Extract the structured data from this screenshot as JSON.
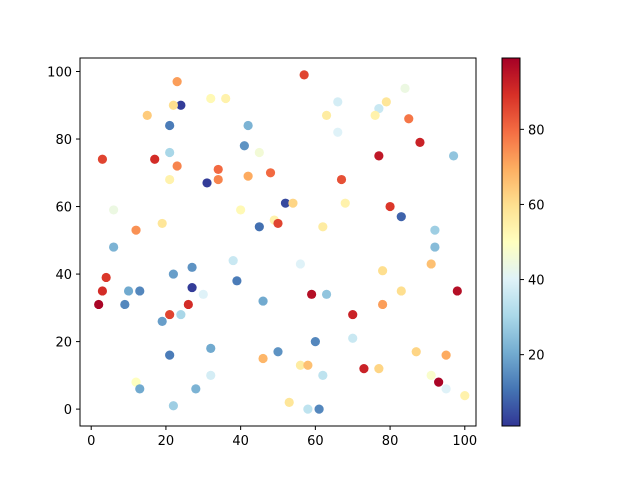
{
  "chart_data": {
    "type": "scatter",
    "title": "",
    "xlabel": "",
    "ylabel": "",
    "xlim": [
      -3,
      103
    ],
    "ylim": [
      -5,
      104
    ],
    "x_ticks": [
      0,
      20,
      40,
      60,
      80,
      100
    ],
    "y_ticks": [
      0,
      20,
      40,
      60,
      80,
      100
    ],
    "grid": false,
    "colormap": "RdYlBu_r",
    "color_range": [
      1,
      99
    ],
    "colorbar": {
      "ticks": [
        20,
        40,
        60,
        80
      ],
      "placement": "right"
    },
    "points": [
      {
        "x": 23,
        "y": 97,
        "c": 72
      },
      {
        "x": 57,
        "y": 99,
        "c": 86
      },
      {
        "x": 24,
        "y": 90,
        "c": 2
      },
      {
        "x": 22,
        "y": 90,
        "c": 60
      },
      {
        "x": 32,
        "y": 92,
        "c": 52
      },
      {
        "x": 36,
        "y": 92,
        "c": 54
      },
      {
        "x": 66,
        "y": 91,
        "c": 38
      },
      {
        "x": 77,
        "y": 89,
        "c": 36
      },
      {
        "x": 79,
        "y": 91,
        "c": 58
      },
      {
        "x": 84,
        "y": 95,
        "c": 44
      },
      {
        "x": 15,
        "y": 87,
        "c": 64
      },
      {
        "x": 63,
        "y": 87,
        "c": 56
      },
      {
        "x": 76,
        "y": 87,
        "c": 54
      },
      {
        "x": 85,
        "y": 86,
        "c": 78
      },
      {
        "x": 21,
        "y": 84,
        "c": 12
      },
      {
        "x": 42,
        "y": 84,
        "c": 22
      },
      {
        "x": 66,
        "y": 82,
        "c": 40
      },
      {
        "x": 88,
        "y": 79,
        "c": 92
      },
      {
        "x": 41,
        "y": 78,
        "c": 16
      },
      {
        "x": 21,
        "y": 76,
        "c": 30
      },
      {
        "x": 45,
        "y": 76,
        "c": 46
      },
      {
        "x": 97,
        "y": 75,
        "c": 26
      },
      {
        "x": 3,
        "y": 74,
        "c": 86
      },
      {
        "x": 17,
        "y": 74,
        "c": 90
      },
      {
        "x": 77,
        "y": 75,
        "c": 94
      },
      {
        "x": 23,
        "y": 72,
        "c": 76
      },
      {
        "x": 34,
        "y": 71,
        "c": 80
      },
      {
        "x": 21,
        "y": 68,
        "c": 54
      },
      {
        "x": 31,
        "y": 67,
        "c": 2
      },
      {
        "x": 34,
        "y": 68,
        "c": 76
      },
      {
        "x": 42,
        "y": 69,
        "c": 70
      },
      {
        "x": 48,
        "y": 70,
        "c": 80
      },
      {
        "x": 67,
        "y": 68,
        "c": 84
      },
      {
        "x": 52,
        "y": 61,
        "c": 4
      },
      {
        "x": 54,
        "y": 61,
        "c": 62
      },
      {
        "x": 68,
        "y": 61,
        "c": 54
      },
      {
        "x": 6,
        "y": 59,
        "c": 44
      },
      {
        "x": 40,
        "y": 59,
        "c": 52
      },
      {
        "x": 80,
        "y": 60,
        "c": 88
      },
      {
        "x": 49,
        "y": 56,
        "c": 54
      },
      {
        "x": 50,
        "y": 55,
        "c": 86
      },
      {
        "x": 19,
        "y": 55,
        "c": 58
      },
      {
        "x": 45,
        "y": 54,
        "c": 10
      },
      {
        "x": 62,
        "y": 54,
        "c": 56
      },
      {
        "x": 83,
        "y": 57,
        "c": 8
      },
      {
        "x": 12,
        "y": 53,
        "c": 74
      },
      {
        "x": 92,
        "y": 53,
        "c": 28
      },
      {
        "x": 6,
        "y": 48,
        "c": 22
      },
      {
        "x": 92,
        "y": 48,
        "c": 24
      },
      {
        "x": 38,
        "y": 44,
        "c": 36
      },
      {
        "x": 56,
        "y": 43,
        "c": 40
      },
      {
        "x": 91,
        "y": 43,
        "c": 66
      },
      {
        "x": 27,
        "y": 42,
        "c": 16
      },
      {
        "x": 22,
        "y": 40,
        "c": 18
      },
      {
        "x": 78,
        "y": 41,
        "c": 60
      },
      {
        "x": 4,
        "y": 39,
        "c": 88
      },
      {
        "x": 39,
        "y": 38,
        "c": 12
      },
      {
        "x": 27,
        "y": 36,
        "c": 2
      },
      {
        "x": 3,
        "y": 35,
        "c": 90
      },
      {
        "x": 10,
        "y": 35,
        "c": 20
      },
      {
        "x": 13,
        "y": 35,
        "c": 14
      },
      {
        "x": 83,
        "y": 35,
        "c": 60
      },
      {
        "x": 98,
        "y": 35,
        "c": 96
      },
      {
        "x": 30,
        "y": 34,
        "c": 40
      },
      {
        "x": 59,
        "y": 34,
        "c": 96
      },
      {
        "x": 63,
        "y": 34,
        "c": 26
      },
      {
        "x": 2,
        "y": 31,
        "c": 98
      },
      {
        "x": 9,
        "y": 31,
        "c": 14
      },
      {
        "x": 26,
        "y": 31,
        "c": 90
      },
      {
        "x": 46,
        "y": 32,
        "c": 20
      },
      {
        "x": 78,
        "y": 31,
        "c": 72
      },
      {
        "x": 21,
        "y": 28,
        "c": 86
      },
      {
        "x": 24,
        "y": 28,
        "c": 30
      },
      {
        "x": 70,
        "y": 28,
        "c": 92
      },
      {
        "x": 19,
        "y": 26,
        "c": 18
      },
      {
        "x": 70,
        "y": 21,
        "c": 36
      },
      {
        "x": 60,
        "y": 20,
        "c": 14
      },
      {
        "x": 32,
        "y": 18,
        "c": 20
      },
      {
        "x": 50,
        "y": 17,
        "c": 16
      },
      {
        "x": 87,
        "y": 17,
        "c": 62
      },
      {
        "x": 21,
        "y": 16,
        "c": 12
      },
      {
        "x": 46,
        "y": 15,
        "c": 68
      },
      {
        "x": 95,
        "y": 16,
        "c": 70
      },
      {
        "x": 56,
        "y": 13,
        "c": 56
      },
      {
        "x": 58,
        "y": 13,
        "c": 66
      },
      {
        "x": 73,
        "y": 12,
        "c": 92
      },
      {
        "x": 77,
        "y": 12,
        "c": 62
      },
      {
        "x": 32,
        "y": 10,
        "c": 38
      },
      {
        "x": 62,
        "y": 10,
        "c": 34
      },
      {
        "x": 91,
        "y": 10,
        "c": 48
      },
      {
        "x": 12,
        "y": 8,
        "c": 50
      },
      {
        "x": 93,
        "y": 8,
        "c": 98
      },
      {
        "x": 13,
        "y": 6,
        "c": 20
      },
      {
        "x": 28,
        "y": 6,
        "c": 22
      },
      {
        "x": 95,
        "y": 6,
        "c": 40
      },
      {
        "x": 53,
        "y": 2,
        "c": 58
      },
      {
        "x": 100,
        "y": 4,
        "c": 54
      },
      {
        "x": 22,
        "y": 1,
        "c": 28
      },
      {
        "x": 58,
        "y": 0,
        "c": 34
      },
      {
        "x": 61,
        "y": 0,
        "c": 14
      }
    ]
  },
  "colors": {
    "axis": "#000000",
    "colormap_stops": [
      "#313695",
      "#4575b4",
      "#74add1",
      "#abd9e9",
      "#e0f3f8",
      "#ffffbf",
      "#fee090",
      "#fdae61",
      "#f46d43",
      "#d73027",
      "#a50026"
    ]
  }
}
